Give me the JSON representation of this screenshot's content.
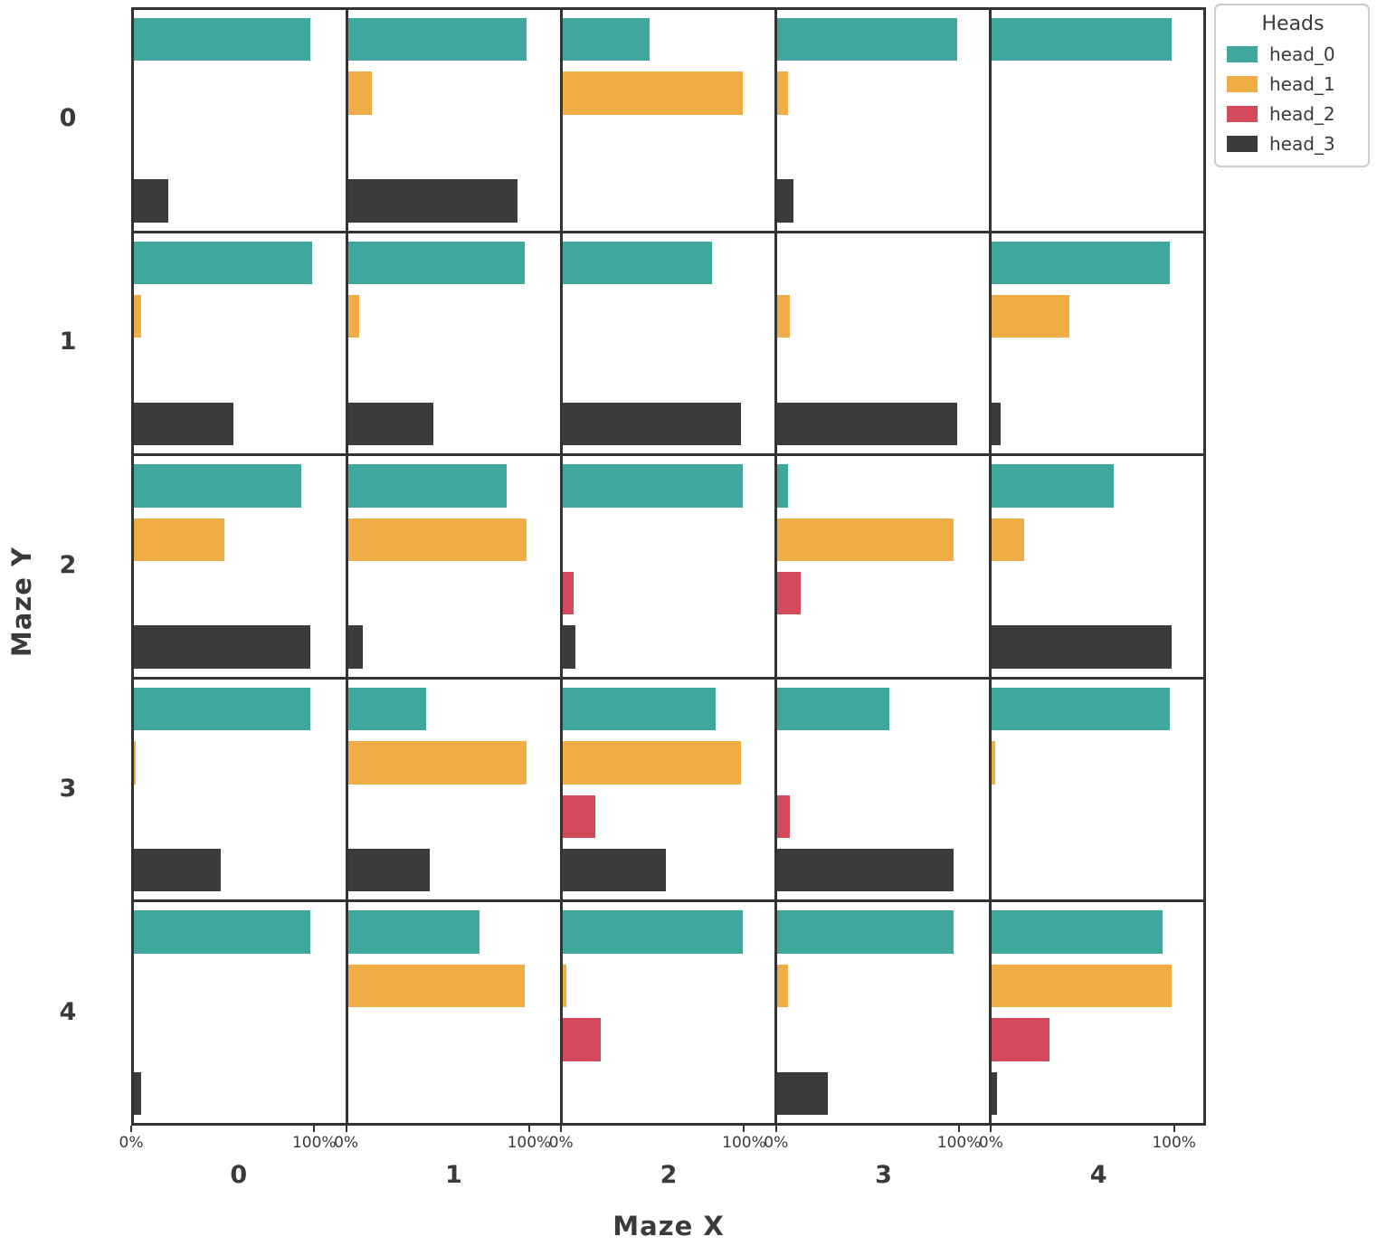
{
  "legend": {
    "title": "Heads",
    "entries": [
      {
        "label": "head_0",
        "color": "#3fa79b"
      },
      {
        "label": "head_1",
        "color": "#efad47"
      },
      {
        "label": "head_2",
        "color": "#d44a5d"
      },
      {
        "label": "head_3",
        "color": "#3a3b3c"
      }
    ]
  },
  "axes": {
    "x_title": "Maze X",
    "y_title": "Maze Y",
    "col_labels": [
      "0",
      "1",
      "2",
      "3",
      "4"
    ],
    "row_labels": [
      "0",
      "1",
      "2",
      "3",
      "4"
    ],
    "x_tick_labels": [
      "0%",
      "100%"
    ]
  },
  "colors": {
    "head_0": "#3fa79b",
    "head_1": "#efad47",
    "head_2": "#d44a5d",
    "head_3": "#3a3b3c",
    "grid_line": "#333333",
    "text": "#3a3a3a"
  },
  "chart_data": {
    "type": "bar",
    "orientation": "horizontal",
    "title": "",
    "xlabel": "Maze X",
    "ylabel": "Maze Y",
    "legend_title": "Heads",
    "legend_position": "upper right, outside plot",
    "series": [
      "head_0",
      "head_1",
      "head_2",
      "head_3"
    ],
    "units": "percent (0% to 100% per facet x-axis)",
    "x_ticks_pct": [
      0,
      100
    ],
    "facet_rows_label": "Maze Y",
    "facet_cols_label": "Maze X",
    "facet_row_values": [
      0,
      1,
      2,
      3,
      4
    ],
    "facet_col_values": [
      0,
      1,
      2,
      3,
      4
    ],
    "cells": [
      {
        "maze_y": 0,
        "maze_x": 0,
        "values": [
          98,
          0,
          0,
          19
        ]
      },
      {
        "maze_y": 0,
        "maze_x": 1,
        "values": [
          99,
          13,
          0,
          94
        ]
      },
      {
        "maze_y": 0,
        "maze_x": 2,
        "values": [
          48,
          100,
          0,
          0
        ]
      },
      {
        "maze_y": 0,
        "maze_x": 3,
        "values": [
          100,
          6,
          0,
          9
        ]
      },
      {
        "maze_y": 0,
        "maze_x": 4,
        "values": [
          100,
          0,
          0,
          0
        ]
      },
      {
        "maze_y": 1,
        "maze_x": 0,
        "values": [
          99,
          4,
          0,
          55
        ]
      },
      {
        "maze_y": 1,
        "maze_x": 1,
        "values": [
          98,
          6,
          0,
          47
        ]
      },
      {
        "maze_y": 1,
        "maze_x": 2,
        "values": [
          83,
          0,
          0,
          99
        ]
      },
      {
        "maze_y": 1,
        "maze_x": 3,
        "values": [
          0,
          7,
          0,
          100
        ]
      },
      {
        "maze_y": 1,
        "maze_x": 4,
        "values": [
          99,
          43,
          0,
          5
        ]
      },
      {
        "maze_y": 2,
        "maze_x": 0,
        "values": [
          93,
          50,
          0,
          98
        ]
      },
      {
        "maze_y": 2,
        "maze_x": 1,
        "values": [
          88,
          99,
          0,
          8
        ]
      },
      {
        "maze_y": 2,
        "maze_x": 2,
        "values": [
          100,
          0,
          6,
          7
        ]
      },
      {
        "maze_y": 2,
        "maze_x": 3,
        "values": [
          6,
          98,
          13,
          0
        ]
      },
      {
        "maze_y": 2,
        "maze_x": 4,
        "values": [
          68,
          18,
          0,
          100
        ]
      },
      {
        "maze_y": 3,
        "maze_x": 0,
        "values": [
          98,
          1,
          0,
          48
        ]
      },
      {
        "maze_y": 3,
        "maze_x": 1,
        "values": [
          43,
          99,
          0,
          45
        ]
      },
      {
        "maze_y": 3,
        "maze_x": 2,
        "values": [
          85,
          99,
          18,
          57
        ]
      },
      {
        "maze_y": 3,
        "maze_x": 3,
        "values": [
          62,
          0,
          7,
          98
        ]
      },
      {
        "maze_y": 3,
        "maze_x": 4,
        "values": [
          99,
          2,
          0,
          0
        ]
      },
      {
        "maze_y": 4,
        "maze_x": 0,
        "values": [
          98,
          0,
          0,
          4
        ]
      },
      {
        "maze_y": 4,
        "maze_x": 1,
        "values": [
          73,
          98,
          0,
          0
        ]
      },
      {
        "maze_y": 4,
        "maze_x": 2,
        "values": [
          100,
          2,
          21,
          0
        ]
      },
      {
        "maze_y": 4,
        "maze_x": 3,
        "values": [
          98,
          6,
          0,
          28
        ]
      },
      {
        "maze_y": 4,
        "maze_x": 4,
        "values": [
          95,
          100,
          32,
          3
        ]
      }
    ]
  }
}
